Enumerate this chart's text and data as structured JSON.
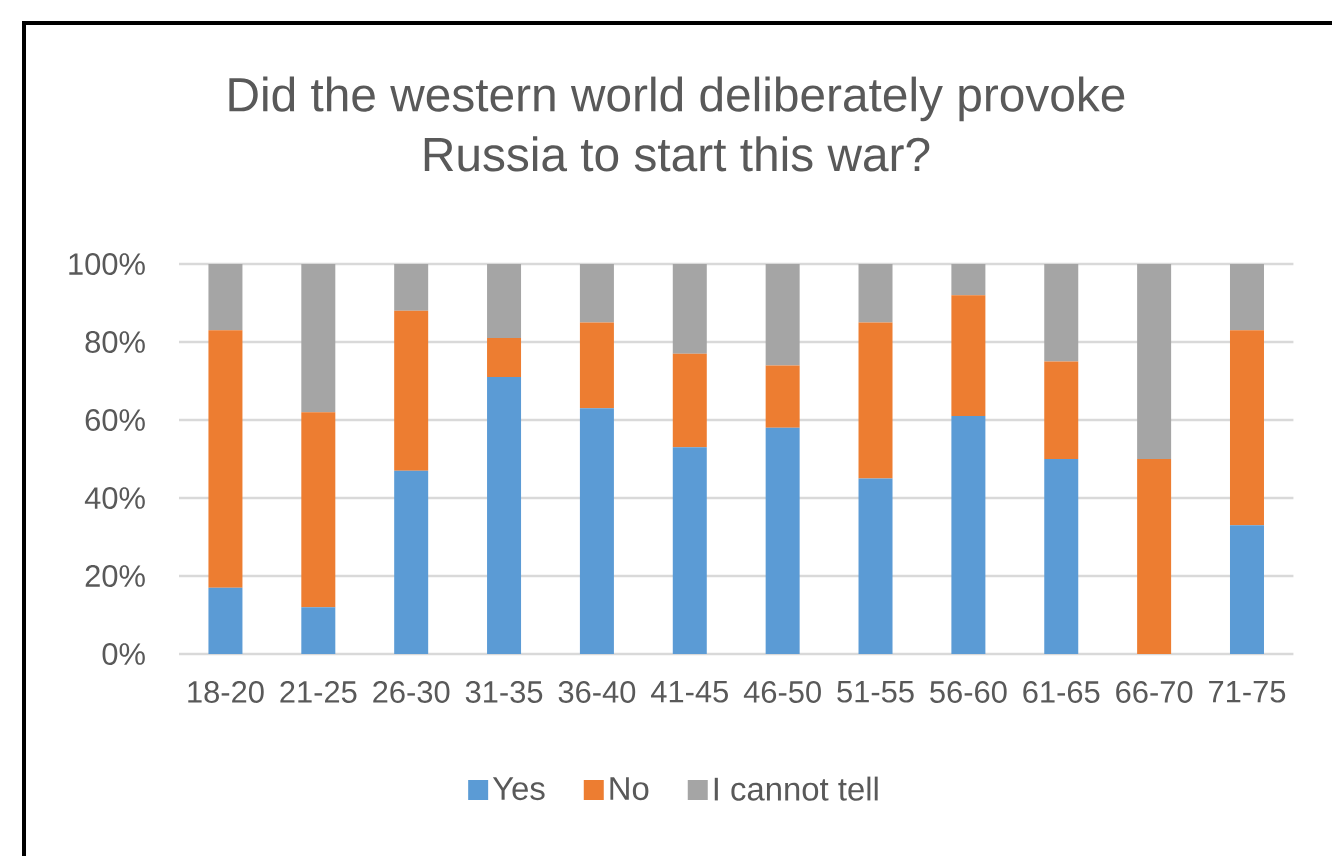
{
  "chart_data": {
    "type": "bar",
    "stacked": true,
    "title": "Did the western world deliberately provoke Russia to start this war?",
    "categories": [
      "18-20",
      "21-25",
      "26-30",
      "31-35",
      "36-40",
      "41-45",
      "46-50",
      "51-55",
      "56-60",
      "61-65",
      "66-70",
      "71-75"
    ],
    "series": [
      {
        "name": "Yes",
        "color": "#5b9bd5",
        "values": [
          17,
          12,
          47,
          71,
          63,
          53,
          58,
          45,
          61,
          50,
          0,
          33
        ]
      },
      {
        "name": "No",
        "color": "#ed7d31",
        "values": [
          66,
          50,
          41,
          10,
          22,
          24,
          16,
          40,
          31,
          25,
          50,
          50
        ]
      },
      {
        "name": "I cannot tell",
        "color": "#a5a5a5",
        "values": [
          17,
          38,
          12,
          19,
          15,
          23,
          26,
          15,
          8,
          25,
          50,
          17
        ]
      }
    ],
    "ylim": [
      0,
      100
    ],
    "yticks": [
      {
        "value": 0,
        "label": "0%"
      },
      {
        "value": 20,
        "label": "20%"
      },
      {
        "value": 40,
        "label": "40%"
      },
      {
        "value": 60,
        "label": "60%"
      },
      {
        "value": 80,
        "label": "80%"
      },
      {
        "value": 100,
        "label": "100%"
      }
    ],
    "grid": "y",
    "legend": "bottom"
  }
}
